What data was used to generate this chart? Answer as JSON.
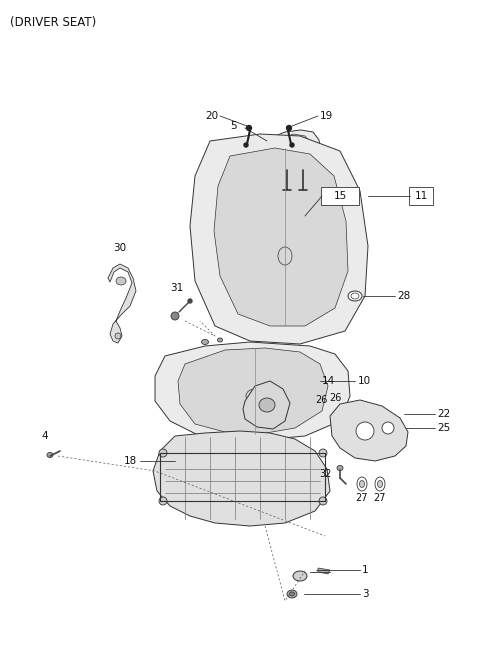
{
  "title": "(DRIVER SEAT)",
  "background_color": "#ffffff",
  "title_fontsize": 8.5,
  "label_fontsize": 7.5,
  "ec": "#333333",
  "lw": 0.7,
  "seat_fill": "#e8e8e8",
  "seat_inner_fill": "#d4d4d4",
  "white": "#ffffff",
  "gray": "#aaaaaa"
}
